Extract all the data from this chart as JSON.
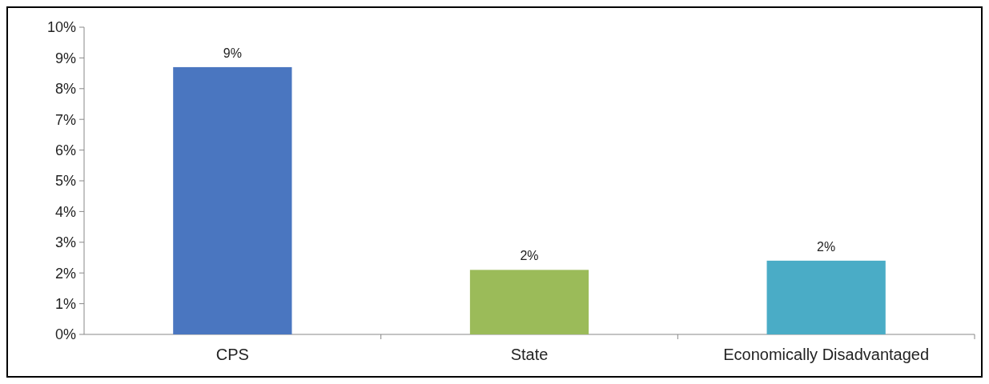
{
  "chart_data": {
    "type": "bar",
    "categories": [
      "CPS",
      "State",
      "Economically Disadvantaged"
    ],
    "values": [
      8.7,
      2.1,
      2.4
    ],
    "colors": [
      "#4a76c0",
      "#9bbb59",
      "#4aacc6"
    ],
    "value_labels": [
      "9%",
      "2%",
      "2%"
    ],
    "ylim": [
      0,
      10
    ],
    "yticks": [
      {
        "value": 0,
        "label": "0%"
      },
      {
        "value": 1,
        "label": "1%"
      },
      {
        "value": 2,
        "label": "2%"
      },
      {
        "value": 3,
        "label": "3%"
      },
      {
        "value": 4,
        "label": "4%"
      },
      {
        "value": 5,
        "label": "5%"
      },
      {
        "value": 6,
        "label": "6%"
      },
      {
        "value": 7,
        "label": "7%"
      },
      {
        "value": 8,
        "label": "8%"
      },
      {
        "value": 9,
        "label": "9%"
      },
      {
        "value": 10,
        "label": "10%"
      }
    ],
    "grid": false
  }
}
